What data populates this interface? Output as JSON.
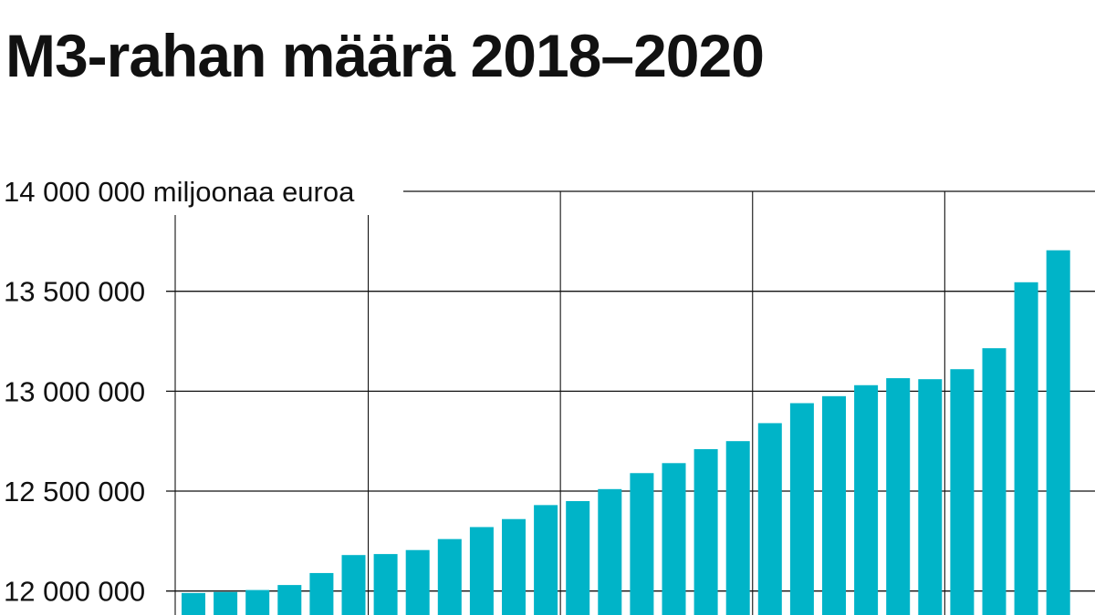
{
  "title": "M3-rahan määrä 2018–2020",
  "colors": {
    "bar": "#00b4c8",
    "grid": "#111111",
    "text": "#111111",
    "background": "#ffffff"
  },
  "chart_data": {
    "type": "bar",
    "title": "M3-rahan määrä 2018–2020",
    "unit_label": "miljoonaa euroa",
    "ylim": [
      11880000,
      14000000
    ],
    "y_ticks": [
      12000000,
      12500000,
      13000000,
      13500000,
      14000000
    ],
    "y_tick_labels": [
      "12 000 000",
      "12 500 000",
      "13 000 000",
      "13 500 000",
      "14 000 000 miljoonaa euroa"
    ],
    "grid": true,
    "year_separators_after_bar": [
      6,
      12,
      18,
      24
    ],
    "values": [
      11990000,
      11995000,
      12005000,
      12030000,
      12090000,
      12180000,
      12185000,
      12205000,
      12260000,
      12320000,
      12360000,
      12430000,
      12450000,
      12510000,
      12590000,
      12640000,
      12710000,
      12750000,
      12840000,
      12940000,
      12975000,
      13030000,
      13065000,
      13060000,
      13110000,
      13215000,
      13545000,
      13705000
    ]
  }
}
